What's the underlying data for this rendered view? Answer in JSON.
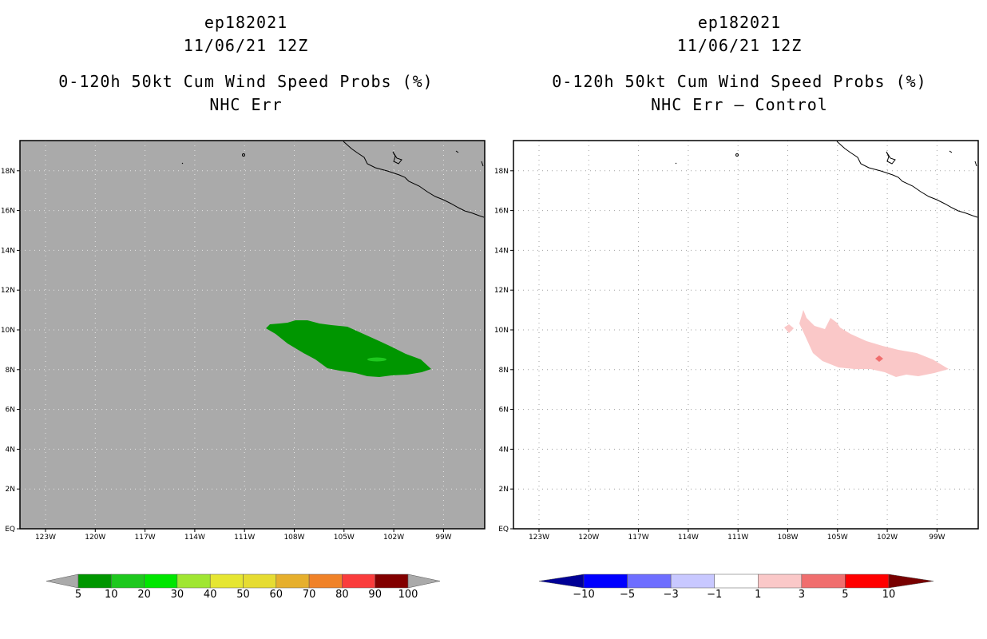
{
  "left_panel": {
    "title": {
      "storm": "ep182021",
      "datetime": "11/06/21 12Z",
      "product": "0-120h 50kt Cum Wind Speed Probs (%)",
      "subtitle": "NHC Err"
    },
    "colorbar": {
      "labels": [
        "5",
        "10",
        "20",
        "30",
        "40",
        "50",
        "60",
        "70",
        "80",
        "90",
        "100"
      ],
      "colors": [
        "#009600",
        "#1ec81e",
        "#00e600",
        "#a0e632",
        "#e6e632",
        "#e6dc32",
        "#e6af2d",
        "#f08228",
        "#fa3c3c",
        "#820000",
        "#a000c8",
        "#aaaaaa"
      ]
    },
    "background_color": "#aaaaaa"
  },
  "right_panel": {
    "title": {
      "storm": "ep182021",
      "datetime": "11/06/21 12Z",
      "product": "0-120h 50kt Cum Wind Speed Probs (%)",
      "subtitle": "NHC Err – Control"
    },
    "colorbar": {
      "labels": [
        "−10",
        "−5",
        "−3",
        "−1",
        "1",
        "3",
        "5",
        "10"
      ],
      "colors": [
        "#000096",
        "#0000ff",
        "#6e6eff",
        "#c8c8ff",
        "#ffffff",
        "#fac8c8",
        "#f06e6e",
        "#ff0000",
        "#780000"
      ]
    },
    "background_color": "#ffffff"
  },
  "map": {
    "lat_labels": [
      "EQ",
      "2N",
      "4N",
      "6N",
      "8N",
      "10N",
      "12N",
      "14N",
      "16N",
      "18N"
    ],
    "lon_labels": [
      "123W",
      "120W",
      "117W",
      "114W",
      "111W",
      "108W",
      "105W",
      "102W",
      "99W"
    ]
  },
  "colors": {
    "prob_area": "#009600",
    "prob_core": "#1ec81e",
    "diff_area": "#fac8c8",
    "diff_core": "#f06e6e"
  }
}
